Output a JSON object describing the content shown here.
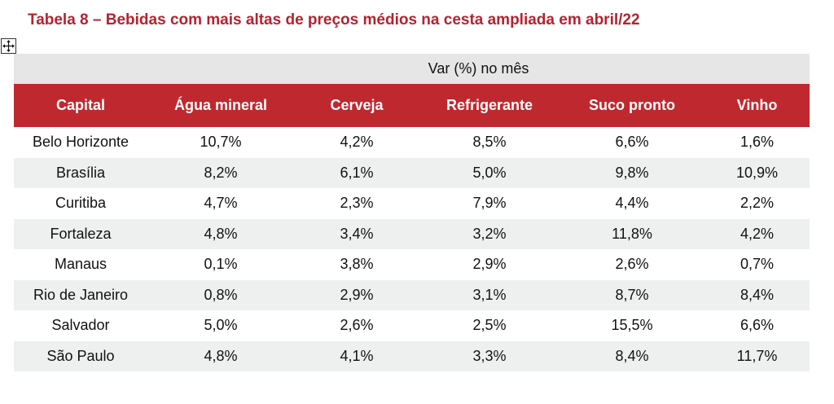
{
  "title": "Tabela 8 – Bebidas com mais altas de preços médios na cesta ampliada em abril/22",
  "icons": {
    "move_handle": "move-arrows-icon"
  },
  "colors": {
    "title": "#b5222f",
    "header_bg": "#c0282f",
    "group_bg": "#e6e6e6",
    "stripe_bg": "#eef0ef"
  },
  "table": {
    "group_header": "Var (%) no mês",
    "columns": [
      "Capital",
      "Água mineral",
      "Cerveja",
      "Refrigerante",
      "Suco pronto",
      "Vinho"
    ],
    "rows": [
      [
        "Belo Horizonte",
        "10,7%",
        "4,2%",
        "8,5%",
        "6,6%",
        "1,6%"
      ],
      [
        "Brasília",
        "8,2%",
        "6,1%",
        "5,0%",
        "9,8%",
        "10,9%"
      ],
      [
        "Curitiba",
        "4,7%",
        "2,3%",
        "7,9%",
        "4,4%",
        "2,2%"
      ],
      [
        "Fortaleza",
        "4,8%",
        "3,4%",
        "3,2%",
        "11,8%",
        "4,2%"
      ],
      [
        "Manaus",
        "0,1%",
        "3,8%",
        "2,9%",
        "2,6%",
        "0,7%"
      ],
      [
        "Rio de Janeiro",
        "0,8%",
        "2,9%",
        "3,1%",
        "8,7%",
        "8,4%"
      ],
      [
        "Salvador",
        "5,0%",
        "2,6%",
        "2,5%",
        "15,5%",
        "6,6%"
      ],
      [
        "São Paulo",
        "4,8%",
        "4,1%",
        "3,3%",
        "8,4%",
        "11,7%"
      ]
    ]
  }
}
